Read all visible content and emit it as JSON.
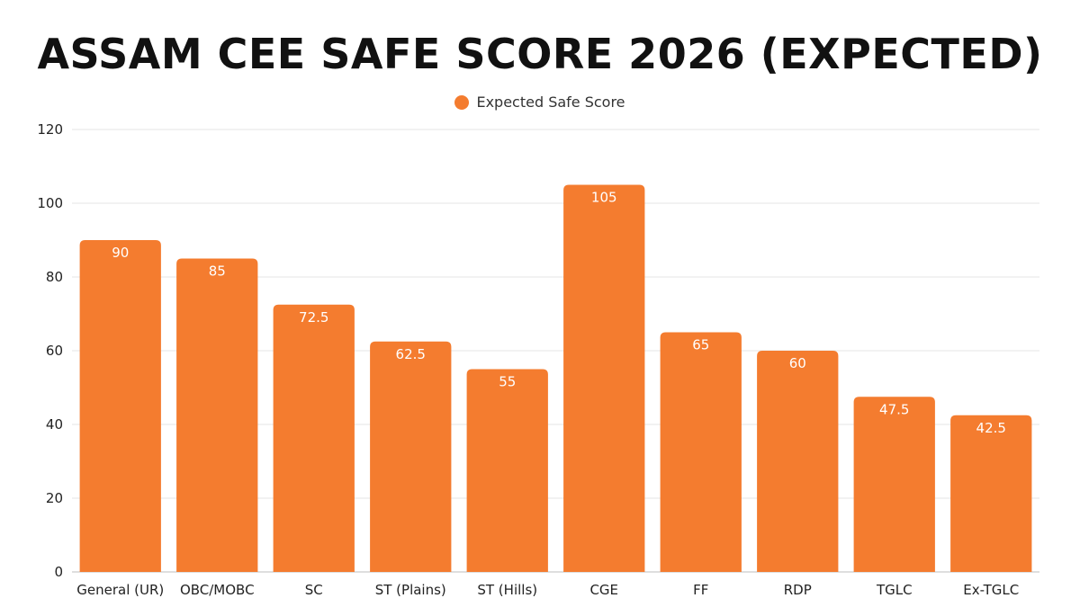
{
  "chart_data": {
    "type": "bar",
    "title": "ASSAM CEE SAFE SCORE 2026 (EXPECTED)",
    "xlabel": "",
    "ylabel": "",
    "ylim": [
      0,
      120
    ],
    "yticks": [
      0,
      20,
      40,
      60,
      80,
      100,
      120
    ],
    "grid": true,
    "legend_position": "top-center",
    "categories": [
      "General (UR)",
      "OBC/MOBC",
      "SC",
      "ST (Plains)",
      "ST (Hills)",
      "CGE",
      "FF",
      "RDP",
      "TGLC",
      "Ex-TGLC"
    ],
    "series": [
      {
        "name": "Expected Safe Score",
        "color": "#F47C2F",
        "values": [
          90,
          85,
          72.5,
          62.5,
          55,
          105,
          65,
          60,
          47.5,
          42.5
        ],
        "labels": [
          "90",
          "85",
          "72.5",
          "62.5",
          "55",
          "105",
          "65",
          "60",
          "47.5",
          "42.5"
        ]
      }
    ]
  }
}
